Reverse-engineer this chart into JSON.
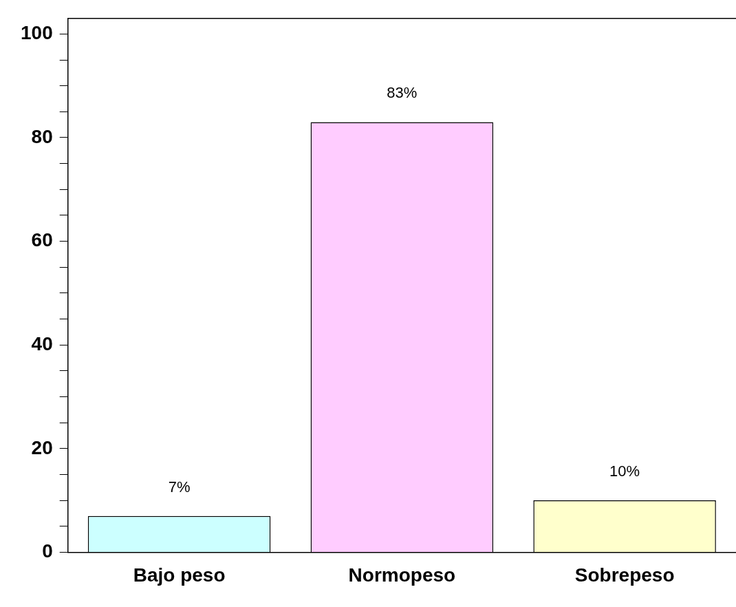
{
  "chart_data": {
    "type": "bar",
    "categories": [
      "Bajo peso",
      "Normopeso",
      "Sobrepeso"
    ],
    "values": [
      7,
      83,
      10
    ],
    "colors": [
      "#ccffff",
      "#ffccff",
      "#ffffcc"
    ],
    "value_labels": [
      "7%",
      "83%",
      "10%"
    ],
    "ylim": [
      0,
      103
    ],
    "yticks": [
      0,
      {
        "value": 5,
        "label": null
      },
      20,
      {
        "value": 10,
        "label": null
      },
      {
        "value": 15,
        "label": null
      },
      {
        "value": 25,
        "label": null
      },
      {
        "value": 30,
        "label": null
      },
      {
        "value": 35,
        "label": null
      },
      40,
      {
        "value": 45,
        "label": null
      },
      {
        "value": 50,
        "label": null
      },
      {
        "value": 55,
        "label": null
      },
      60,
      {
        "value": 65,
        "label": null
      },
      {
        "value": 70,
        "label": null
      },
      {
        "value": 75,
        "label": null
      },
      80,
      {
        "value": 85,
        "label": null
      },
      {
        "value": 90,
        "label": null
      },
      {
        "value": 95,
        "label": null
      },
      100
    ],
    "grid": false,
    "legend": false
  }
}
